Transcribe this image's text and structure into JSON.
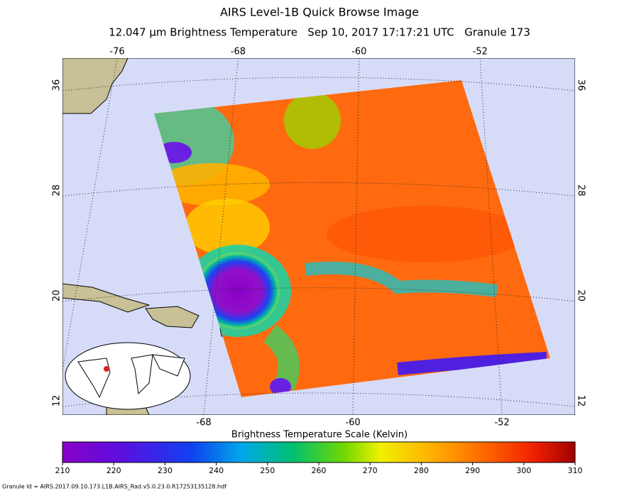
{
  "header": {
    "title": "AIRS Level-1B Quick Browse Image",
    "subtitle": "12.047 μm Brightness Temperature   Sep 10, 2017 17:17:21 UTC   Granule 173"
  },
  "map": {
    "top_lon_labels": [
      -76,
      -68,
      -60,
      -52
    ],
    "bottom_lon_labels": [
      -68,
      -60,
      -52
    ],
    "left_lat_labels": [
      36,
      28,
      20,
      12
    ],
    "right_lat_labels": [
      36,
      28,
      20,
      12
    ]
  },
  "colorbar": {
    "title": "Brightness Temperature Scale (Kelvin)",
    "range": [
      210,
      310
    ],
    "ticks": [
      210,
      220,
      230,
      240,
      250,
      260,
      270,
      280,
      290,
      300,
      310
    ]
  },
  "footer": "Granule Id = AIRS.2017.09.10.173.L1B.AIRS_Rad.v5.0.23.0.R17253135128.hdf"
}
